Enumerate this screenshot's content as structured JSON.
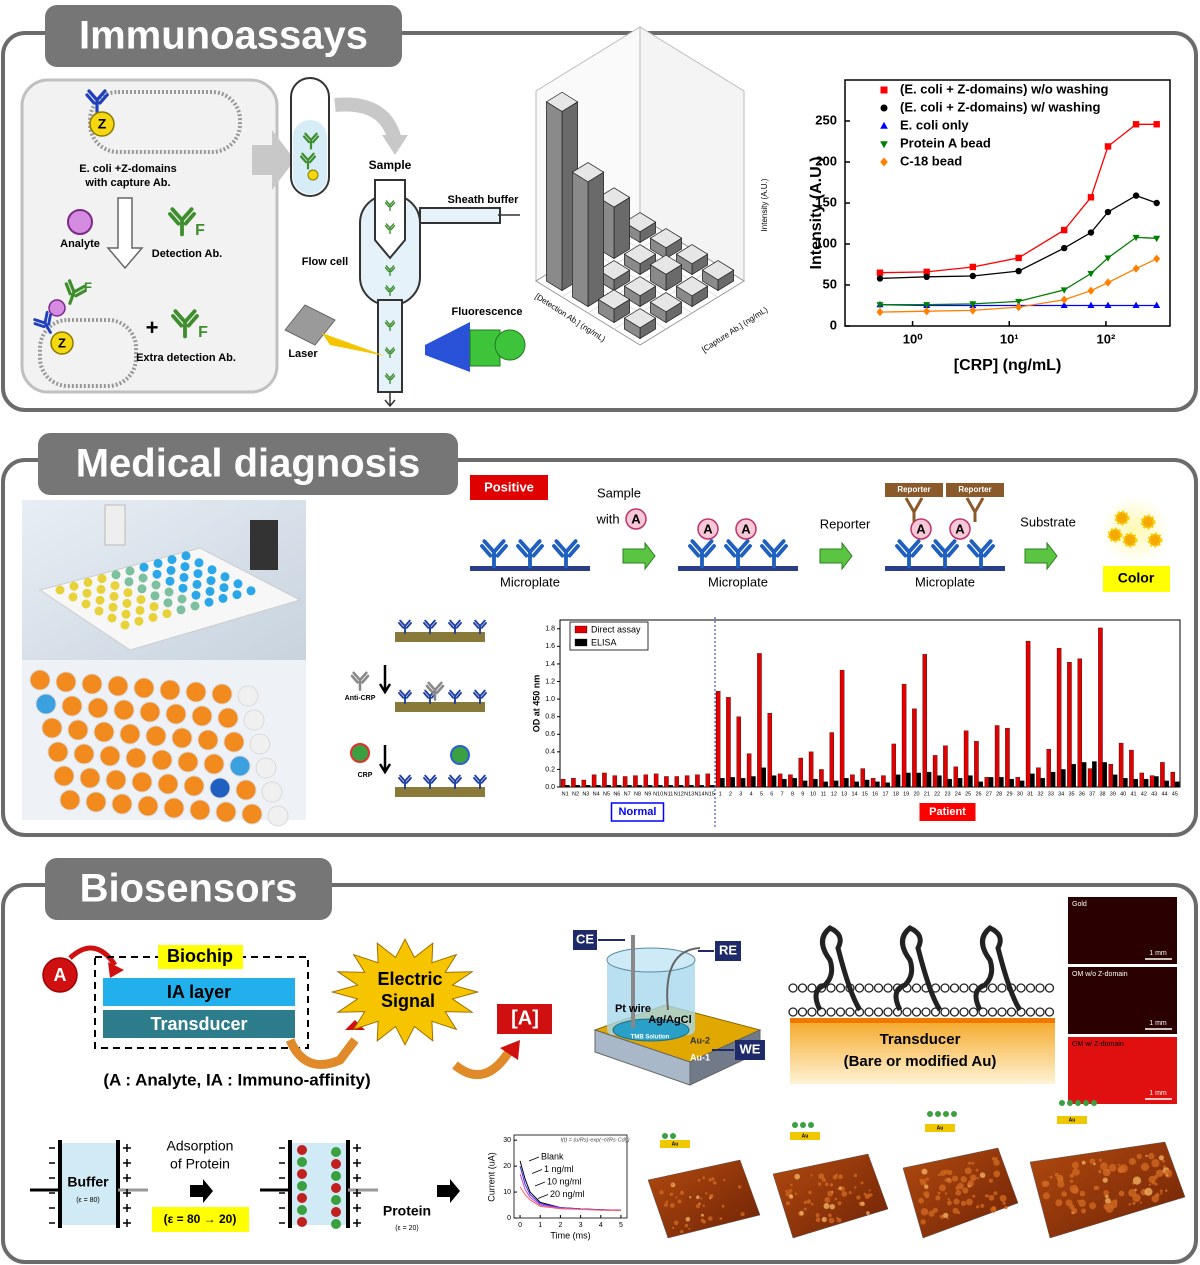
{
  "immunoassays": {
    "title": "Immunoassays",
    "scheme": {
      "z": "Z",
      "f": "F",
      "cell": [
        "E. coli +Z-domains",
        "with capture Ab."
      ],
      "analyte": "Analyte",
      "detection": "Detection Ab.",
      "plus": "+",
      "extra": "Extra detection Ab."
    },
    "flow": {
      "sample": "Sample",
      "sheath": "Sheath buffer",
      "flow_cell": "Flow cell",
      "fluorescence": "Fluorescence",
      "laser": "Laser"
    },
    "bar3d": {
      "type": "bar3d",
      "zlabel": "Intensity (A.U.)",
      "xlabel": "[Detection Ab.] (ng/mL)",
      "ylabel": "[Capture Ab.] (ng/mL)",
      "zlim": [
        0,
        350
      ],
      "values": [
        [
          20,
          20,
          20,
          20
        ],
        [
          25,
          20,
          30,
          20
        ],
        [
          230,
          20,
          20,
          20
        ],
        [
          330,
          25,
          95,
          20
        ]
      ]
    },
    "crp_chart": {
      "type": "scatter",
      "xlabel": "[CRP] (ng/mL)",
      "ylabel": "Intensity (A.U.)",
      "log_x": true,
      "xlim": [
        0.2,
        460
      ],
      "xticks": [
        {
          "value": 1,
          "label": "10⁰"
        },
        {
          "value": 10,
          "label": "10¹"
        },
        {
          "value": 100,
          "label": "10²"
        }
      ],
      "ylim": [
        0,
        300
      ],
      "yticks": [
        0,
        50,
        100,
        150,
        200,
        250
      ],
      "x": [
        0.46,
        1.4,
        4.2,
        12.5,
        37,
        70,
        105,
        205,
        335
      ],
      "series": [
        {
          "name": "(E. coli + Z-domains) w/o washing",
          "color": "#ff0000",
          "marker": "square",
          "values": [
            65,
            66,
            72,
            83,
            117,
            157,
            219,
            246,
            246
          ]
        },
        {
          "name": "(E. coli + Z-domains) w/ washing",
          "color": "#000000",
          "marker": "circle",
          "values": [
            58,
            60,
            61,
            67,
            95,
            114,
            139,
            159,
            150
          ]
        },
        {
          "name": "E. coli only",
          "color": "#0000ff",
          "marker": "triangle-up",
          "values": [
            26,
            25,
            25,
            25,
            25,
            25,
            25,
            25,
            25
          ]
        },
        {
          "name": "Protein A bead",
          "color": "#008000",
          "marker": "triangle-down",
          "values": [
            26,
            26,
            27,
            30,
            44,
            64,
            83,
            108,
            107
          ]
        },
        {
          "name": "C-18 bead",
          "color": "#ff8000",
          "marker": "diamond",
          "values": [
            17,
            18,
            19,
            23,
            32,
            43,
            53,
            70,
            82
          ]
        }
      ]
    }
  },
  "medical_diagnosis": {
    "title": "Medical diagnosis",
    "scheme": {
      "positive": "Positive",
      "sample": [
        "Sample",
        "with"
      ],
      "analyte": "A",
      "microplate": "Microplate",
      "reporter_step": "Reporter",
      "reporter_tag": "Reporter",
      "substrate": "Substrate",
      "color": "Color"
    },
    "crp_scheme": {
      "anti_crp": "Anti-CRP",
      "crp": "CRP"
    },
    "od_chart": {
      "type": "bar",
      "ylabel": "OD at 450 nm",
      "ylim": [
        0,
        1.9
      ],
      "yticks": [
        {
          "value": 0,
          "label": "0.0"
        },
        {
          "value": 0.2,
          "label": "0.2"
        },
        {
          "value": 0.4,
          "label": "0.4"
        },
        {
          "value": 0.6,
          "label": "0.6"
        },
        {
          "value": 0.8,
          "label": "0.8"
        },
        {
          "value": 1,
          "label": "1.0"
        },
        {
          "value": 1.2,
          "label": "1.2"
        },
        {
          "value": 1.4,
          "label": "1.4"
        },
        {
          "value": 1.6,
          "label": "1.6"
        },
        {
          "value": 1.8,
          "label": "1.8"
        }
      ],
      "categories": [
        "N1",
        "N2",
        "N3",
        "N4",
        "N5",
        "N6",
        "N7",
        "N8",
        "N9",
        "N10",
        "N11",
        "N12",
        "N13",
        "N14",
        "N15",
        "1",
        "2",
        "3",
        "4",
        "5",
        "6",
        "7",
        "8",
        "9",
        "10",
        "11",
        "12",
        "13",
        "14",
        "15",
        "16",
        "17",
        "18",
        "19",
        "20",
        "21",
        "22",
        "23",
        "24",
        "25",
        "26",
        "27",
        "28",
        "29",
        "30",
        "31",
        "32",
        "33",
        "34",
        "35",
        "36",
        "37",
        "38",
        "39",
        "40",
        "41",
        "42",
        "43",
        "44",
        "45"
      ],
      "series": [
        {
          "name": "Direct assay",
          "color": "#e00000",
          "values": [
            0.09,
            0.1,
            0.08,
            0.14,
            0.16,
            0.13,
            0.12,
            0.13,
            0.14,
            0.15,
            0.12,
            0.12,
            0.13,
            0.14,
            0.15,
            1.09,
            1.02,
            0.8,
            0.38,
            1.52,
            0.84,
            0.15,
            0.14,
            0.33,
            0.4,
            0.2,
            0.62,
            1.33,
            0.14,
            0.21,
            0.1,
            0.13,
            0.49,
            1.17,
            0.89,
            1.51,
            0.36,
            0.47,
            0.23,
            0.64,
            0.52,
            0.11,
            0.7,
            0.67,
            0.11,
            1.66,
            0.22,
            0.43,
            1.58,
            1.42,
            1.46,
            0.21,
            1.81,
            0.26,
            0.5,
            0.42,
            0.16,
            0.13,
            0.28,
            0.17
          ]
        },
        {
          "name": "ELISA",
          "color": "#000000",
          "values": [
            0.02,
            0.02,
            0.02,
            0.02,
            0.02,
            0.02,
            0.02,
            0.02,
            0.02,
            0.02,
            0.02,
            0.02,
            0.02,
            0.02,
            0.02,
            0.1,
            0.11,
            0.1,
            0.12,
            0.22,
            0.13,
            0.09,
            0.1,
            0.07,
            0.09,
            0.06,
            0.07,
            0.1,
            0.06,
            0.08,
            0.06,
            0.05,
            0.14,
            0.16,
            0.16,
            0.17,
            0.13,
            0.09,
            0.1,
            0.13,
            0.06,
            0.11,
            0.11,
            0.09,
            0.07,
            0.15,
            0.1,
            0.17,
            0.2,
            0.26,
            0.28,
            0.29,
            0.28,
            0.14,
            0.1,
            0.09,
            0.09,
            0.12,
            0.07,
            0.06
          ]
        }
      ],
      "groups": [
        {
          "label": "Normal",
          "color": "#0000ff",
          "count": 15
        },
        {
          "label": "Patient",
          "color": "#ff0000",
          "count": 45
        }
      ]
    }
  },
  "biosensors": {
    "title": "Biosensors",
    "scheme": {
      "analyte": "A",
      "biochip": "Biochip",
      "ia_layer": "IA layer",
      "transducer": "Transducer",
      "signal": [
        "Electric",
        "Signal"
      ],
      "result": "[A]",
      "legend": "(A : Analyte, IA : Immuno-affinity)"
    },
    "cell": {
      "ce": "CE",
      "re": "RE",
      "we": "WE",
      "pt": "Pt wire",
      "ref": "Ag/AgCl",
      "solution": "TMB Solution",
      "au2": "Au-2",
      "au1": "Au-1"
    },
    "membrane": {
      "transducer": [
        "Transducer",
        "(Bare or modified Au)"
      ]
    },
    "micrographs": {
      "panels": [
        "Gold",
        "OM w/o Z-domain",
        "OM w/ Z-domain"
      ],
      "scale": "1 mm"
    },
    "capacitance": {
      "buffer": "Buffer",
      "buffer_eps": "(ε = 80)",
      "step": [
        "Adsorption",
        "of Protein"
      ],
      "change": "(ε = 80 → 20)",
      "protein": "Protein",
      "protein_eps": "(ε = 20)"
    },
    "current_chart": {
      "type": "line",
      "xlabel": "Time (ms)",
      "ylabel": "Current (uA)",
      "equation": "I(t) = (u/Rs)·exp(−t/(Rs·Cdl))",
      "xlim": [
        -0.3,
        5.3
      ],
      "xticks": [
        0,
        1,
        2,
        3,
        4,
        5
      ],
      "ylim": [
        0,
        32
      ],
      "yticks": [
        0,
        10,
        20,
        30
      ],
      "x": [
        0,
        0.25,
        0.5,
        1,
        2,
        3,
        4,
        5
      ],
      "series": [
        {
          "name": "Blank",
          "color": "#000000",
          "values": [
            22,
            15,
            10,
            6,
            4,
            3.5,
            3.2,
            3
          ]
        },
        {
          "name": "1 ng/ml",
          "color": "#3030ff",
          "values": [
            20,
            13,
            9,
            5.5,
            4,
            3.5,
            3.2,
            3
          ]
        },
        {
          "name": "10 ng/ml",
          "color": "#d040d0",
          "values": [
            17,
            11,
            8,
            5,
            3.8,
            3.4,
            3.1,
            3
          ]
        },
        {
          "name": "20 ng/ml",
          "color": "#ff6060",
          "values": [
            12,
            9,
            7,
            4.5,
            3.6,
            3.3,
            3,
            2.9
          ]
        }
      ]
    },
    "afm": {
      "substrate": "Au"
    }
  }
}
